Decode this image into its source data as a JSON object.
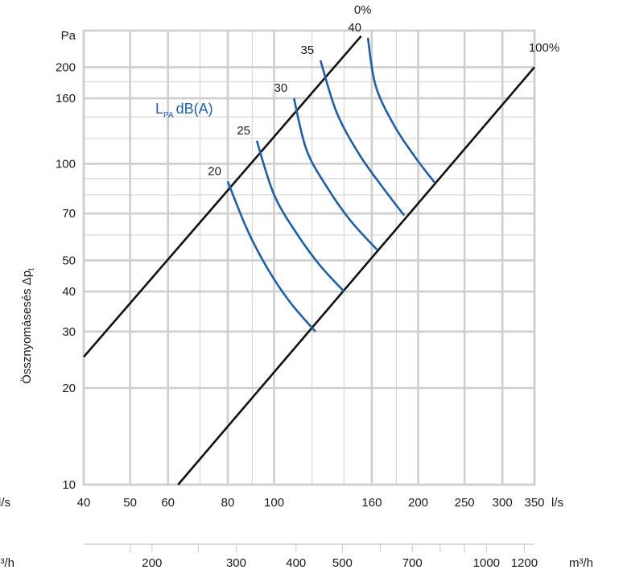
{
  "chart_data": {
    "type": "line",
    "x_unit_top": "l/s",
    "x_unit_bottom": "m³/h",
    "y_unit": "Pa",
    "ylabel_main": "Össznyomásesés",
    "ylabel_symbol": "Δp",
    "ylabel_sub": "t",
    "curve_label_main": "L",
    "curve_label_sub": "PA",
    "curve_label_unit": "dB(A)",
    "xlim": [
      40,
      350
    ],
    "ylim": [
      10,
      260
    ],
    "xscale": "log",
    "yscale": "log",
    "x_ticks": [
      40,
      50,
      60,
      80,
      100,
      160,
      200,
      250,
      300,
      350
    ],
    "x_ticks_m3h": [
      200,
      300,
      400,
      500,
      700,
      1000,
      1200
    ],
    "y_ticks": [
      10,
      20,
      30,
      40,
      50,
      70,
      100,
      160,
      200
    ],
    "minor_x": [
      70,
      90,
      120,
      140,
      180
    ],
    "minor_y": [
      60,
      80,
      90,
      120,
      140,
      180
    ],
    "series": [
      {
        "name": "0%",
        "kind": "system",
        "x": [
          40,
          152
        ],
        "y": [
          25,
          250
        ]
      },
      {
        "name": "100%",
        "kind": "system",
        "x": [
          63,
          350
        ],
        "y": [
          10,
          200
        ]
      }
    ],
    "sound_curves": [
      {
        "name": "20",
        "x": [
          80,
          88,
          97,
          108,
          122
        ],
        "y": [
          88,
          62,
          47,
          37,
          30
        ]
      },
      {
        "name": "25",
        "x": [
          92,
          100,
          112,
          125,
          140
        ],
        "y": [
          118,
          80,
          60,
          48,
          40
        ]
      },
      {
        "name": "30",
        "x": [
          110,
          117,
          130,
          145,
          164
        ],
        "y": [
          160,
          110,
          83,
          66,
          54
        ]
      },
      {
        "name": "35",
        "x": [
          125,
          135,
          150,
          168,
          187
        ],
        "y": [
          210,
          145,
          108,
          85,
          69
        ]
      },
      {
        "name": "40",
        "x": [
          157,
          163,
          178,
          197,
          217
        ],
        "y": [
          247,
          175,
          132,
          105,
          87
        ]
      }
    ]
  }
}
